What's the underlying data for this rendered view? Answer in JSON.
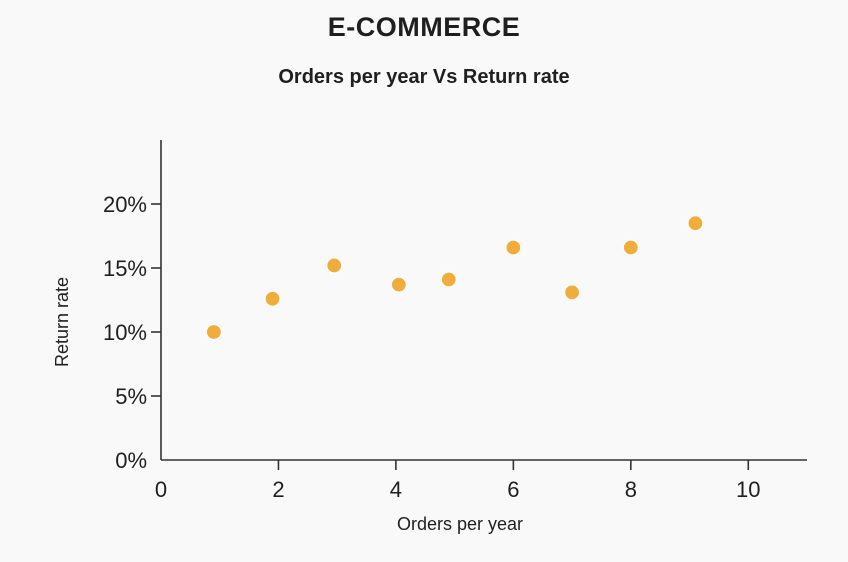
{
  "title": "E-COMMERCE",
  "subtitle": "Orders per year Vs Return rate",
  "chart_data": {
    "type": "scatter",
    "title": "E-COMMERCE",
    "subtitle": "Orders per year Vs Return rate",
    "xlabel": "Orders per year",
    "ylabel": "Return rate",
    "xlim": [
      0,
      11
    ],
    "ylim": [
      0,
      25
    ],
    "x_ticks": [
      0,
      2,
      4,
      6,
      8,
      10
    ],
    "x_tick_labels": [
      "0",
      "2",
      "4",
      "6",
      "8",
      "10"
    ],
    "y_ticks": [
      0,
      5,
      10,
      15,
      20
    ],
    "y_tick_labels": [
      "0%",
      "5%",
      "10%",
      "15%",
      "20%"
    ],
    "grid": false,
    "legend": "none",
    "series": [
      {
        "color": "#f0ad3c",
        "points": [
          {
            "x": 0.9,
            "y": 10.0
          },
          {
            "x": 1.9,
            "y": 12.6
          },
          {
            "x": 2.95,
            "y": 15.2
          },
          {
            "x": 4.05,
            "y": 13.7
          },
          {
            "x": 4.9,
            "y": 14.1
          },
          {
            "x": 6.0,
            "y": 16.6
          },
          {
            "x": 7.0,
            "y": 13.1
          },
          {
            "x": 8.0,
            "y": 16.6
          },
          {
            "x": 9.1,
            "y": 18.5
          }
        ]
      }
    ]
  }
}
